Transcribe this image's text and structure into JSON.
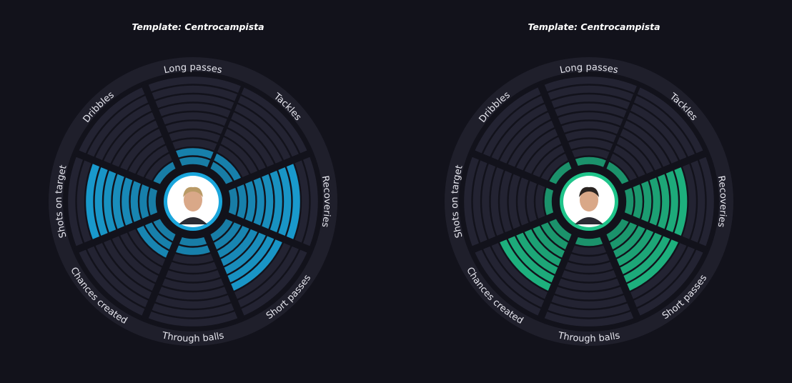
{
  "colors": {
    "background": "#12121b",
    "ring": "#1f1f2b",
    "empty_segment": "#232332",
    "separator": "#12121b",
    "player1_fill": "#1aa6dc",
    "player2_fill": "#1fc48a",
    "photo_border_player1": "#1aa6dc",
    "photo_border_player2": "#1fc48a"
  },
  "chart_data": [
    {
      "type": "radar-bar",
      "title": "Template: Centrocampista",
      "photo_icon": "player-photo",
      "categories": [
        "Tackles",
        "Recoveries",
        "Short passes",
        "Through balls",
        "Chances created",
        "Shots on target",
        "Dribbles",
        "Long passes"
      ],
      "scale_max": 10,
      "values": [
        2,
        8,
        7,
        2,
        3,
        8,
        1,
        2
      ]
    },
    {
      "type": "radar-bar",
      "title": "Template: Centrocampista",
      "photo_icon": "player-photo",
      "categories": [
        "Tackles",
        "Recoveries",
        "Short passes",
        "Through balls",
        "Chances created",
        "Shots on target",
        "Dribbles",
        "Long passes"
      ],
      "scale_max": 10,
      "values": [
        1,
        7,
        7,
        1,
        7,
        1,
        1,
        1
      ]
    }
  ]
}
